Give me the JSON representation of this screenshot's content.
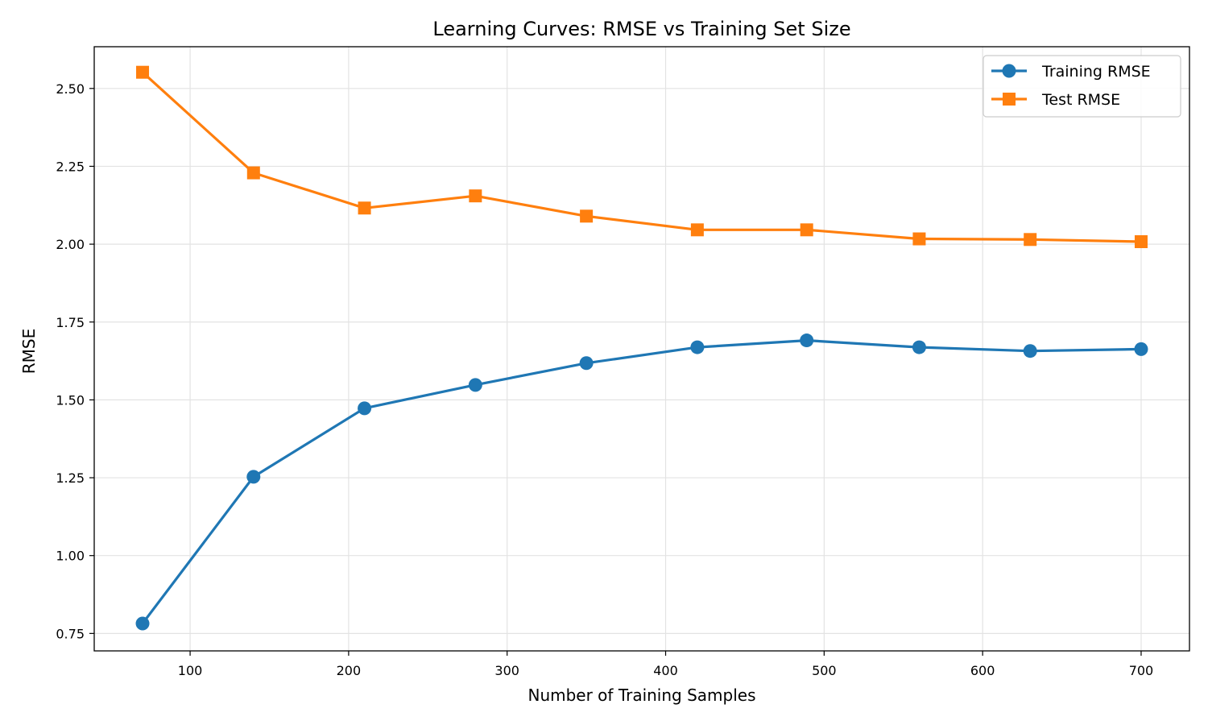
{
  "chart_data": {
    "type": "line",
    "title": "Learning Curves: RMSE vs Training Set Size",
    "xlabel": "Number of Training Samples",
    "ylabel": "RMSE",
    "xlim": [
      39.5,
      730.5
    ],
    "ylim": [
      0.694,
      2.634
    ],
    "xticks": [
      100,
      200,
      300,
      400,
      500,
      600,
      700
    ],
    "yticks": [
      0.75,
      1.0,
      1.25,
      1.5,
      1.75,
      2.0,
      2.25,
      2.5
    ],
    "ytick_labels": [
      "0.75",
      "1.00",
      "1.25",
      "1.50",
      "1.75",
      "2.00",
      "2.25",
      "2.50"
    ],
    "grid": true,
    "legend_position": "top-right",
    "x": [
      70,
      140,
      210,
      280,
      350,
      420,
      489,
      560,
      630,
      700
    ],
    "series": [
      {
        "name": "Training RMSE",
        "color": "#1f77b4",
        "marker": "circle",
        "values": [
          0.782,
          1.253,
          1.473,
          1.548,
          1.618,
          1.669,
          1.691,
          1.669,
          1.657,
          1.663
        ]
      },
      {
        "name": "Test RMSE",
        "color": "#ff7f0e",
        "marker": "square",
        "values": [
          2.552,
          2.229,
          2.116,
          2.155,
          2.09,
          2.046,
          2.046,
          2.017,
          2.015,
          2.008
        ]
      }
    ]
  }
}
